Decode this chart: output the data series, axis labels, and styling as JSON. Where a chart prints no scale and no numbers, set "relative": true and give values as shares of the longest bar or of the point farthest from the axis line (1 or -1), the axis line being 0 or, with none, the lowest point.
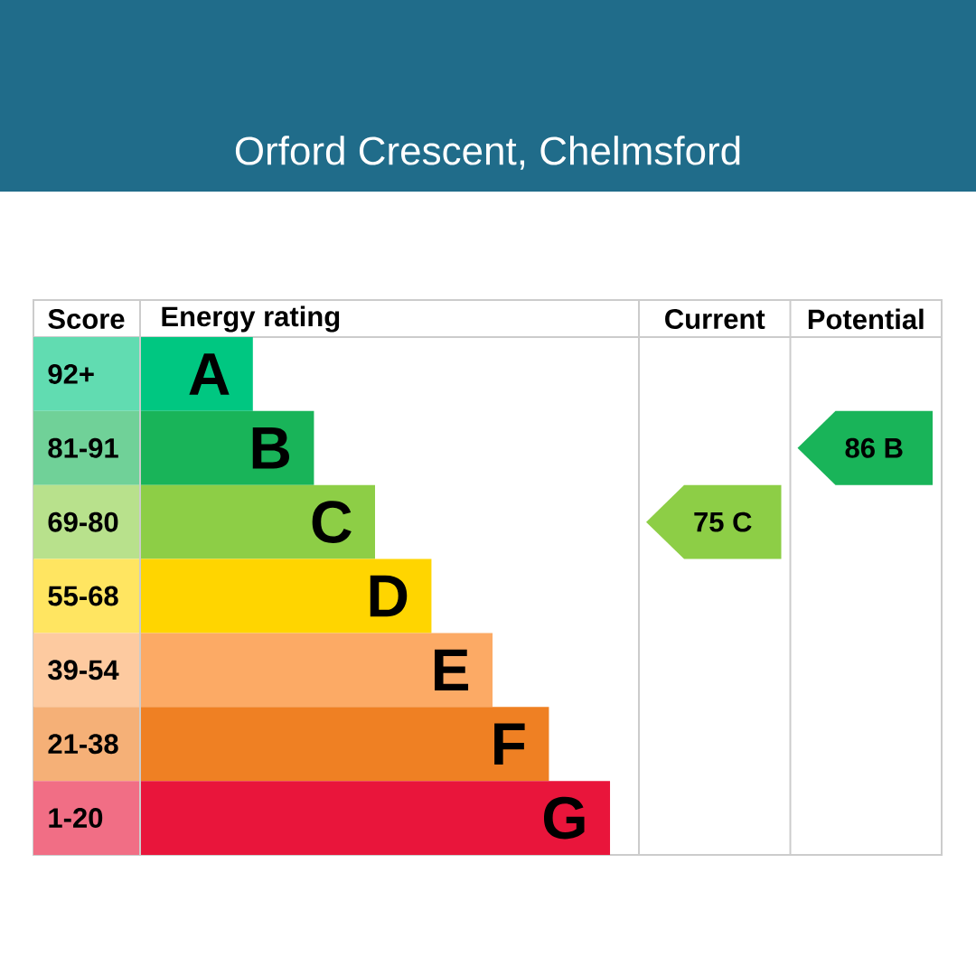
{
  "chart_data": {
    "type": "bar",
    "orientation": "horizontal",
    "relative": true,
    "title": "Orford Crescent, Chelmsford",
    "ylabel": "Score",
    "xlabel": "Energy rating",
    "categories": [
      "92+",
      "81-91",
      "69-80",
      "55-68",
      "39-54",
      "21-38",
      "1-20"
    ],
    "values": [
      0.24,
      0.37,
      0.5,
      0.62,
      0.75,
      0.87,
      1
    ],
    "colors": [
      "#00c781",
      "#19b459",
      "#8dce46",
      "#ffd500",
      "#fcaa65",
      "#ef8023",
      "#e9153b"
    ],
    "annotations": [
      {
        "text": "A",
        "x": 0.24,
        "y": "92+"
      },
      {
        "text": "B",
        "x": 0.37,
        "y": "81-91"
      },
      {
        "text": "C",
        "x": 0.5,
        "y": "69-80"
      },
      {
        "text": "D",
        "x": 0.62,
        "y": "55-68"
      },
      {
        "text": "E",
        "x": 0.75,
        "y": "39-54"
      },
      {
        "text": "F",
        "x": 0.87,
        "y": "21-38"
      },
      {
        "text": "G",
        "x": 1,
        "y": "1-20"
      },
      "Current",
      "Potential",
      "75 C",
      "86 B"
    ]
  }
}
